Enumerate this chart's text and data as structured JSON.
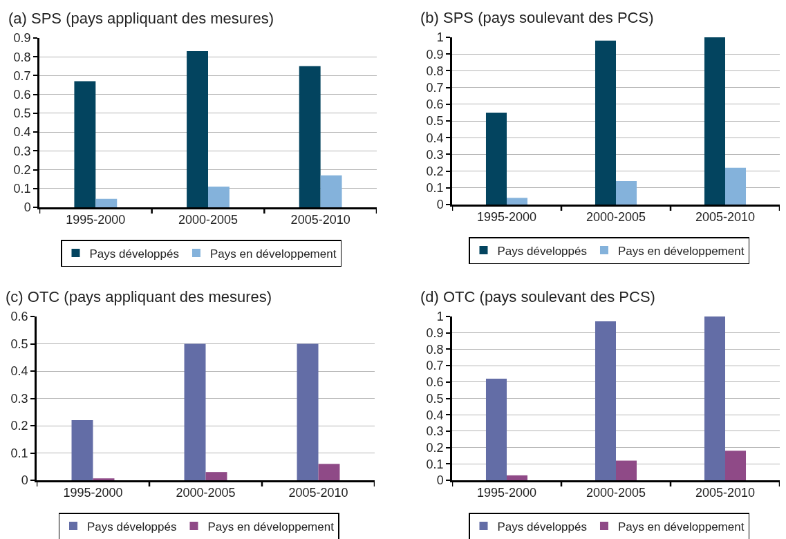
{
  "chart_data": [
    {
      "type": "bar",
      "title": "(a) SPS (pays appliquant des mesures)",
      "categories": [
        "1995-2000",
        "2000-2005",
        "2005-2010"
      ],
      "series": [
        {
          "name": "Pays développés",
          "color": "#03445f",
          "values": [
            0.67,
            0.83,
            0.75
          ]
        },
        {
          "name": "Pays en développement",
          "color": "#84b2db",
          "values": [
            0.045,
            0.11,
            0.17
          ]
        }
      ],
      "ylim": [
        0,
        0.9
      ],
      "yticks": [
        0,
        0.1,
        0.2,
        0.3,
        0.4,
        0.5,
        0.6,
        0.7,
        0.8,
        0.9
      ],
      "grid": "y",
      "legend": "bottom"
    },
    {
      "type": "bar",
      "title": "(b) SPS (pays soulevant des PCS)",
      "categories": [
        "1995-2000",
        "2000-2005",
        "2005-2010"
      ],
      "series": [
        {
          "name": "Pays développés",
          "color": "#03445f",
          "values": [
            0.55,
            0.98,
            1.0
          ]
        },
        {
          "name": "Pays en développement",
          "color": "#84b2db",
          "values": [
            0.04,
            0.14,
            0.22
          ]
        }
      ],
      "ylim": [
        0,
        1
      ],
      "yticks": [
        0,
        0.1,
        0.2,
        0.3,
        0.4,
        0.5,
        0.6,
        0.7,
        0.8,
        0.9,
        1
      ],
      "grid": "y",
      "legend": "bottom"
    },
    {
      "type": "bar",
      "title": "(c) OTC (pays appliquant des mesures)",
      "categories": [
        "1995-2000",
        "2000-2005",
        "2005-2010"
      ],
      "series": [
        {
          "name": "Pays développés",
          "color": "#636da6",
          "values": [
            0.22,
            0.5,
            0.5
          ]
        },
        {
          "name": "Pays en développement",
          "color": "#8f4a87",
          "values": [
            0.007,
            0.03,
            0.06
          ]
        }
      ],
      "ylim": [
        0,
        0.6
      ],
      "yticks": [
        0,
        0.1,
        0.2,
        0.3,
        0.4,
        0.5,
        0.6
      ],
      "grid": "y",
      "legend": "bottom"
    },
    {
      "type": "bar",
      "title": "(d) OTC (pays soulevant des PCS)",
      "categories": [
        "1995-2000",
        "2000-2005",
        "2005-2010"
      ],
      "series": [
        {
          "name": "Pays développés",
          "color": "#636da6",
          "values": [
            0.62,
            0.97,
            1.0
          ]
        },
        {
          "name": "Pays en développement",
          "color": "#8f4a87",
          "values": [
            0.03,
            0.12,
            0.18
          ]
        }
      ],
      "ylim": [
        0,
        1
      ],
      "yticks": [
        0,
        0.1,
        0.2,
        0.3,
        0.4,
        0.5,
        0.6,
        0.7,
        0.8,
        0.9,
        1
      ],
      "grid": "y",
      "legend": "bottom"
    }
  ]
}
